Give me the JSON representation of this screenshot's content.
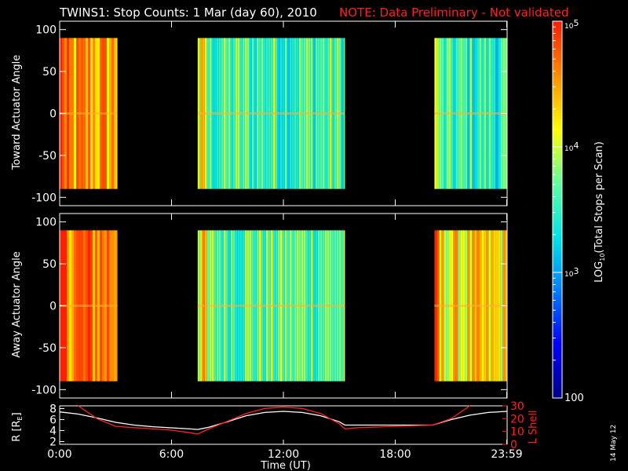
{
  "header": {
    "title": "TWINS1: Stop Counts:  1 Mar (day  60), 2010",
    "note": "NOTE: Data Preliminary - Not validated"
  },
  "footer": {
    "date_stamp": "14 May 12"
  },
  "colorbar": {
    "label": "LOG10(Total Stops per Scan)",
    "label_base": "LOG",
    "label_sub": "10",
    "label_rest": "(Total Stops per Scan)",
    "tick_labels": [
      "10^5",
      "10^4",
      "10^3",
      "100"
    ],
    "range": [
      2,
      5
    ],
    "scale": "log",
    "colors": [
      "#00008b",
      "#0000ff",
      "#0080ff",
      "#00e5e5",
      "#60ffa0",
      "#ffff00",
      "#ff9000",
      "#ff2000"
    ]
  },
  "chart_data": [
    {
      "type": "heatmap",
      "name_panel": "toward",
      "ylabel": "Toward Actuator Angle",
      "ylim": [
        -110,
        110
      ],
      "yticks": [
        100,
        50,
        0,
        -50,
        -100
      ],
      "xlim": [
        0,
        24
      ],
      "xticks": [
        "0:00",
        "6:00",
        "12:00",
        "18:00",
        "23:59"
      ],
      "data_angle_range": [
        -90,
        90
      ],
      "intervals": [
        {
          "start_hr": 0.0,
          "end_hr": 3.1,
          "mean_log10": 4.5
        },
        {
          "start_hr": 7.4,
          "end_hr": 15.3,
          "mean_log10": 3.6
        },
        {
          "start_hr": 20.1,
          "end_hr": 24.0,
          "mean_log10": 3.5
        }
      ]
    },
    {
      "type": "heatmap",
      "name_panel": "away",
      "ylabel": "Away Actuator Angle",
      "ylim": [
        -110,
        110
      ],
      "yticks": [
        100,
        50,
        0,
        -50,
        -100
      ],
      "xlim": [
        0,
        24
      ],
      "xticks": [
        "0:00",
        "6:00",
        "12:00",
        "18:00",
        "23:59"
      ],
      "data_angle_range": [
        -90,
        90
      ],
      "intervals": [
        {
          "start_hr": 0.0,
          "end_hr": 3.1,
          "mean_log10": 4.7
        },
        {
          "start_hr": 7.4,
          "end_hr": 15.3,
          "mean_log10": 3.7
        },
        {
          "start_hr": 20.1,
          "end_hr": 24.0,
          "mean_log10": 4.2
        }
      ]
    },
    {
      "type": "line",
      "name_panel": "orbit",
      "xlabel": "Time (UT)",
      "xlim": [
        0,
        24
      ],
      "xticks": [
        "0:00",
        "6:00",
        "12:00",
        "18:00",
        "23:59"
      ],
      "ylabel_left": "R [RE]",
      "ylabel_left_base": "R [R",
      "ylabel_left_sub": "E",
      "ylabel_left_end": "]",
      "ylim_left": [
        1.5,
        8.5
      ],
      "yticks_left": [
        8,
        6,
        4,
        2
      ],
      "ylabel_right": "L Shell",
      "ylim_right": [
        0,
        30
      ],
      "yticks_right": [
        30,
        20,
        10,
        0
      ],
      "series": [
        {
          "name": "R",
          "axis": "left",
          "color": "#ffffff",
          "x": [
            0,
            1,
            2,
            3,
            4,
            5,
            6,
            7,
            7.4,
            8,
            9,
            10,
            11,
            12,
            13,
            14,
            15,
            15.3,
            16,
            17,
            18,
            19,
            20,
            21,
            22,
            23,
            24
          ],
          "y": [
            7.4,
            7.0,
            6.3,
            5.5,
            5.0,
            4.7,
            4.5,
            4.3,
            4.2,
            4.6,
            5.6,
            6.7,
            7.3,
            7.5,
            7.3,
            6.7,
            5.6,
            5.0,
            5.0,
            5.0,
            5.0,
            5.0,
            5.0,
            6.0,
            6.8,
            7.3,
            7.5
          ]
        },
        {
          "name": "L Shell",
          "axis": "right",
          "color": "#ff2020",
          "x": [
            1.0,
            2.0,
            3.0,
            4.0,
            5.0,
            6.0,
            7.0,
            7.4,
            8.0,
            9.0,
            10.0,
            11.0,
            12.0,
            13.0,
            14.0,
            15.0,
            15.3,
            16.0,
            18.0,
            20.0,
            21.0,
            22.0
          ],
          "y": [
            30,
            20,
            14,
            13,
            12,
            11,
            9,
            8,
            12,
            18,
            24,
            28,
            29,
            28,
            24,
            16,
            12,
            13,
            14,
            15,
            20,
            30
          ]
        }
      ]
    }
  ]
}
